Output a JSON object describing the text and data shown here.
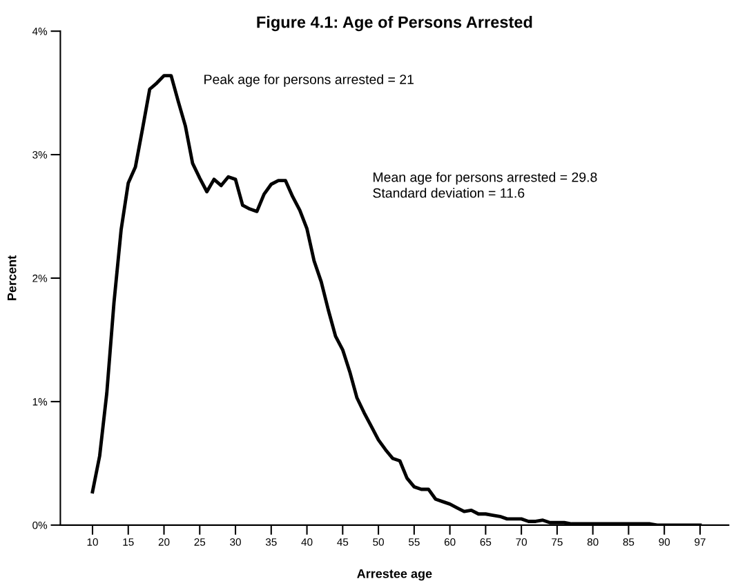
{
  "chart_data": {
    "type": "line",
    "title": "Figure 4.1: Age of Persons Arrested",
    "xlabel": "Arrestee age",
    "ylabel": "Percent",
    "annotations": [
      "Peak age for persons arrested = 21",
      "Mean age for persons arrested = 29.8",
      "Standard deviation = 11.6"
    ],
    "categories": [
      "10",
      null,
      null,
      null,
      null,
      "15",
      null,
      null,
      null,
      null,
      "20",
      null,
      null,
      null,
      null,
      "25",
      null,
      null,
      null,
      null,
      "30",
      null,
      null,
      null,
      null,
      "35",
      null,
      null,
      null,
      null,
      "40",
      null,
      null,
      null,
      null,
      "45",
      null,
      null,
      null,
      null,
      "50",
      null,
      null,
      null,
      null,
      "55",
      null,
      null,
      null,
      null,
      "60",
      null,
      null,
      null,
      null,
      "65",
      null,
      null,
      null,
      null,
      "70",
      null,
      null,
      null,
      null,
      "75",
      null,
      null,
      null,
      null,
      "80",
      null,
      null,
      null,
      null,
      "85",
      null,
      null,
      null,
      null,
      "90",
      null,
      null,
      null,
      null,
      "97"
    ],
    "series": [
      {
        "color": "#000000",
        "values": [
          0.27,
          0.56,
          1.07,
          1.8,
          2.39,
          2.77,
          2.9,
          3.21,
          3.53,
          3.58,
          3.64,
          3.64,
          3.43,
          3.23,
          2.93,
          2.81,
          2.7,
          2.8,
          2.75,
          2.82,
          2.8,
          2.59,
          2.56,
          2.54,
          2.68,
          2.76,
          2.79,
          2.79,
          2.66,
          2.55,
          2.4,
          2.14,
          1.97,
          1.74,
          1.53,
          1.42,
          1.24,
          1.03,
          0.91,
          0.8,
          0.69,
          0.61,
          0.54,
          0.52,
          0.38,
          0.31,
          0.29,
          0.29,
          0.21,
          0.19,
          0.17,
          0.14,
          0.11,
          0.12,
          0.09,
          0.09,
          0.08,
          0.07,
          0.05,
          0.05,
          0.05,
          0.03,
          0.03,
          0.04,
          0.02,
          0.02,
          0.02,
          0.01,
          0.01,
          0.01,
          0.01,
          0.01,
          0.01,
          0.01,
          0.01,
          0.01,
          0.01,
          0.01,
          0.01,
          0.0,
          0.0,
          0.0,
          0.0,
          0.0,
          0.0,
          0.0
        ]
      }
    ],
    "ylim": [
      0,
      4
    ],
    "yticks": [
      {
        "value": 0,
        "label": "0%"
      },
      {
        "value": 1,
        "label": "1%"
      },
      {
        "value": 2,
        "label": "2%"
      },
      {
        "value": 3,
        "label": "3%"
      },
      {
        "value": 4,
        "label": "4%"
      }
    ],
    "grid": false,
    "legend": false,
    "marker": "none",
    "line_style": "solid"
  }
}
